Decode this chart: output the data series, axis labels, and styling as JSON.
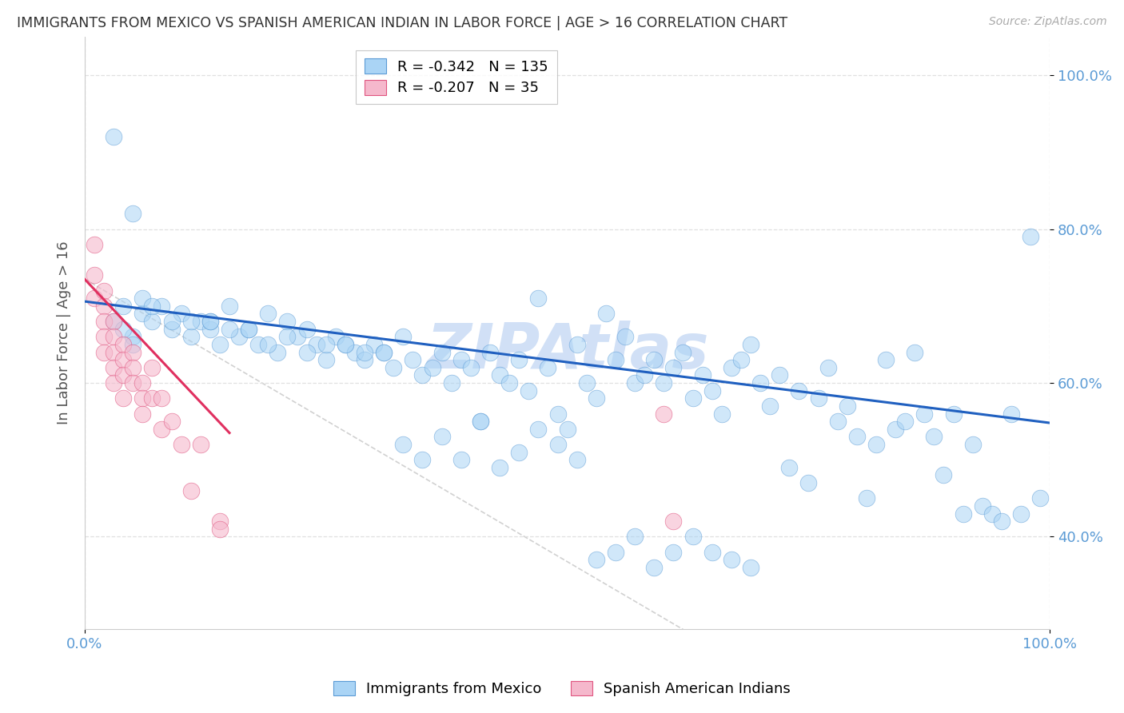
{
  "title": "IMMIGRANTS FROM MEXICO VS SPANISH AMERICAN INDIAN IN LABOR FORCE | AGE > 16 CORRELATION CHART",
  "source": "Source: ZipAtlas.com",
  "ylabel": "In Labor Force | Age > 16",
  "xlim": [
    0.0,
    1.0
  ],
  "ylim": [
    0.28,
    1.05
  ],
  "xtick_labels": [
    "0.0%",
    "100.0%"
  ],
  "ytick_labels": [
    "40.0%",
    "60.0%",
    "80.0%",
    "100.0%"
  ],
  "ytick_positions": [
    0.4,
    0.6,
    0.8,
    1.0
  ],
  "blue_R": "-0.342",
  "blue_N": "135",
  "pink_R": "-0.207",
  "pink_N": "35",
  "blue_color": "#aad4f5",
  "blue_edge_color": "#5b9bd5",
  "pink_color": "#f5b8cc",
  "pink_edge_color": "#e05580",
  "blue_line_color": "#2060c0",
  "pink_line_color": "#e03060",
  "dashed_line_color": "#cccccc",
  "title_color": "#333333",
  "axis_label_color": "#555555",
  "tick_label_color": "#5b9bd5",
  "watermark_color": "#ccddf5",
  "grid_color": "#dddddd",
  "blue_scatter_x": [
    0.03,
    0.04,
    0.05,
    0.06,
    0.07,
    0.08,
    0.09,
    0.1,
    0.11,
    0.12,
    0.13,
    0.14,
    0.15,
    0.04,
    0.05,
    0.06,
    0.13,
    0.16,
    0.17,
    0.18,
    0.19,
    0.2,
    0.21,
    0.22,
    0.23,
    0.24,
    0.25,
    0.26,
    0.27,
    0.28,
    0.29,
    0.3,
    0.31,
    0.32,
    0.33,
    0.34,
    0.35,
    0.36,
    0.37,
    0.38,
    0.39,
    0.4,
    0.41,
    0.42,
    0.43,
    0.44,
    0.45,
    0.46,
    0.47,
    0.48,
    0.49,
    0.5,
    0.51,
    0.52,
    0.53,
    0.54,
    0.55,
    0.56,
    0.57,
    0.58,
    0.59,
    0.6,
    0.61,
    0.62,
    0.63,
    0.64,
    0.65,
    0.66,
    0.67,
    0.68,
    0.69,
    0.7,
    0.71,
    0.72,
    0.73,
    0.74,
    0.75,
    0.76,
    0.77,
    0.78,
    0.79,
    0.8,
    0.81,
    0.82,
    0.83,
    0.84,
    0.85,
    0.86,
    0.87,
    0.88,
    0.89,
    0.9,
    0.91,
    0.92,
    0.93,
    0.94,
    0.95,
    0.96,
    0.97,
    0.98,
    0.03,
    0.05,
    0.07,
    0.09,
    0.11,
    0.13,
    0.15,
    0.17,
    0.19,
    0.21,
    0.23,
    0.25,
    0.27,
    0.29,
    0.31,
    0.33,
    0.35,
    0.37,
    0.39,
    0.41,
    0.43,
    0.45,
    0.47,
    0.49,
    0.51,
    0.53,
    0.55,
    0.57,
    0.59,
    0.61,
    0.63,
    0.65,
    0.67,
    0.69,
    0.99
  ],
  "blue_scatter_y": [
    0.68,
    0.7,
    0.66,
    0.69,
    0.68,
    0.7,
    0.67,
    0.69,
    0.66,
    0.68,
    0.67,
    0.65,
    0.7,
    0.67,
    0.65,
    0.71,
    0.68,
    0.66,
    0.67,
    0.65,
    0.69,
    0.64,
    0.68,
    0.66,
    0.67,
    0.65,
    0.63,
    0.66,
    0.65,
    0.64,
    0.63,
    0.65,
    0.64,
    0.62,
    0.66,
    0.63,
    0.61,
    0.62,
    0.64,
    0.6,
    0.63,
    0.62,
    0.55,
    0.64,
    0.61,
    0.6,
    0.63,
    0.59,
    0.71,
    0.62,
    0.56,
    0.54,
    0.65,
    0.6,
    0.58,
    0.69,
    0.63,
    0.66,
    0.6,
    0.61,
    0.63,
    0.6,
    0.62,
    0.64,
    0.58,
    0.61,
    0.59,
    0.56,
    0.62,
    0.63,
    0.65,
    0.6,
    0.57,
    0.61,
    0.49,
    0.59,
    0.47,
    0.58,
    0.62,
    0.55,
    0.57,
    0.53,
    0.45,
    0.52,
    0.63,
    0.54,
    0.55,
    0.64,
    0.56,
    0.53,
    0.48,
    0.56,
    0.43,
    0.52,
    0.44,
    0.43,
    0.42,
    0.56,
    0.43,
    0.79,
    0.92,
    0.82,
    0.7,
    0.68,
    0.68,
    0.68,
    0.67,
    0.67,
    0.65,
    0.66,
    0.64,
    0.65,
    0.65,
    0.64,
    0.64,
    0.52,
    0.5,
    0.53,
    0.5,
    0.55,
    0.49,
    0.51,
    0.54,
    0.52,
    0.5,
    0.37,
    0.38,
    0.4,
    0.36,
    0.38,
    0.4,
    0.38,
    0.37,
    0.36,
    0.45
  ],
  "pink_scatter_x": [
    0.01,
    0.01,
    0.01,
    0.02,
    0.02,
    0.02,
    0.02,
    0.02,
    0.03,
    0.03,
    0.03,
    0.03,
    0.03,
    0.04,
    0.04,
    0.04,
    0.04,
    0.05,
    0.05,
    0.05,
    0.06,
    0.06,
    0.06,
    0.07,
    0.07,
    0.08,
    0.08,
    0.09,
    0.1,
    0.11,
    0.12,
    0.14,
    0.14,
    0.6,
    0.61
  ],
  "pink_scatter_y": [
    0.78,
    0.74,
    0.71,
    0.72,
    0.7,
    0.68,
    0.66,
    0.64,
    0.68,
    0.66,
    0.64,
    0.62,
    0.6,
    0.65,
    0.63,
    0.61,
    0.58,
    0.64,
    0.62,
    0.6,
    0.6,
    0.58,
    0.56,
    0.62,
    0.58,
    0.58,
    0.54,
    0.55,
    0.52,
    0.46,
    0.52,
    0.42,
    0.41,
    0.56,
    0.42
  ],
  "blue_line_x": [
    0.0,
    1.0
  ],
  "blue_line_y": [
    0.706,
    0.548
  ],
  "pink_line_x": [
    0.0,
    0.15
  ],
  "pink_line_y": [
    0.735,
    0.535
  ],
  "dashed_line_x": [
    0.0,
    1.0
  ],
  "dashed_line_y": [
    0.735,
    0.0
  ],
  "figsize": [
    14.06,
    8.92
  ],
  "dpi": 100
}
